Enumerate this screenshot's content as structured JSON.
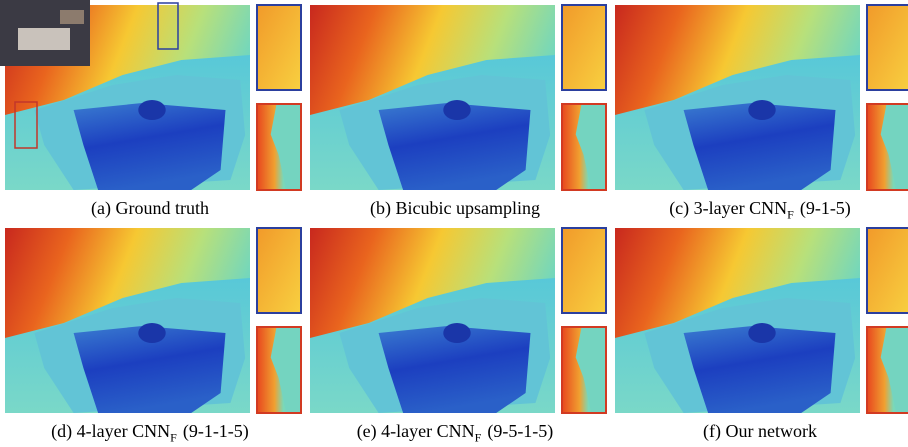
{
  "panels": [
    {
      "caption": "(a) Ground truth"
    },
    {
      "caption": "(b) Bicubic upsampling"
    },
    {
      "caption": "(c) 3-layer CNN",
      "subscript": "F",
      "suffix": "(9-1-5)"
    },
    {
      "caption": "(d) 4-layer CNN",
      "subscript": "F",
      "suffix": "(9-1-1-5)"
    },
    {
      "caption": "(e) 4-layer CNN",
      "subscript": "F",
      "suffix": "(9-5-1-5)"
    },
    {
      "caption": "(f) Our network"
    }
  ]
}
